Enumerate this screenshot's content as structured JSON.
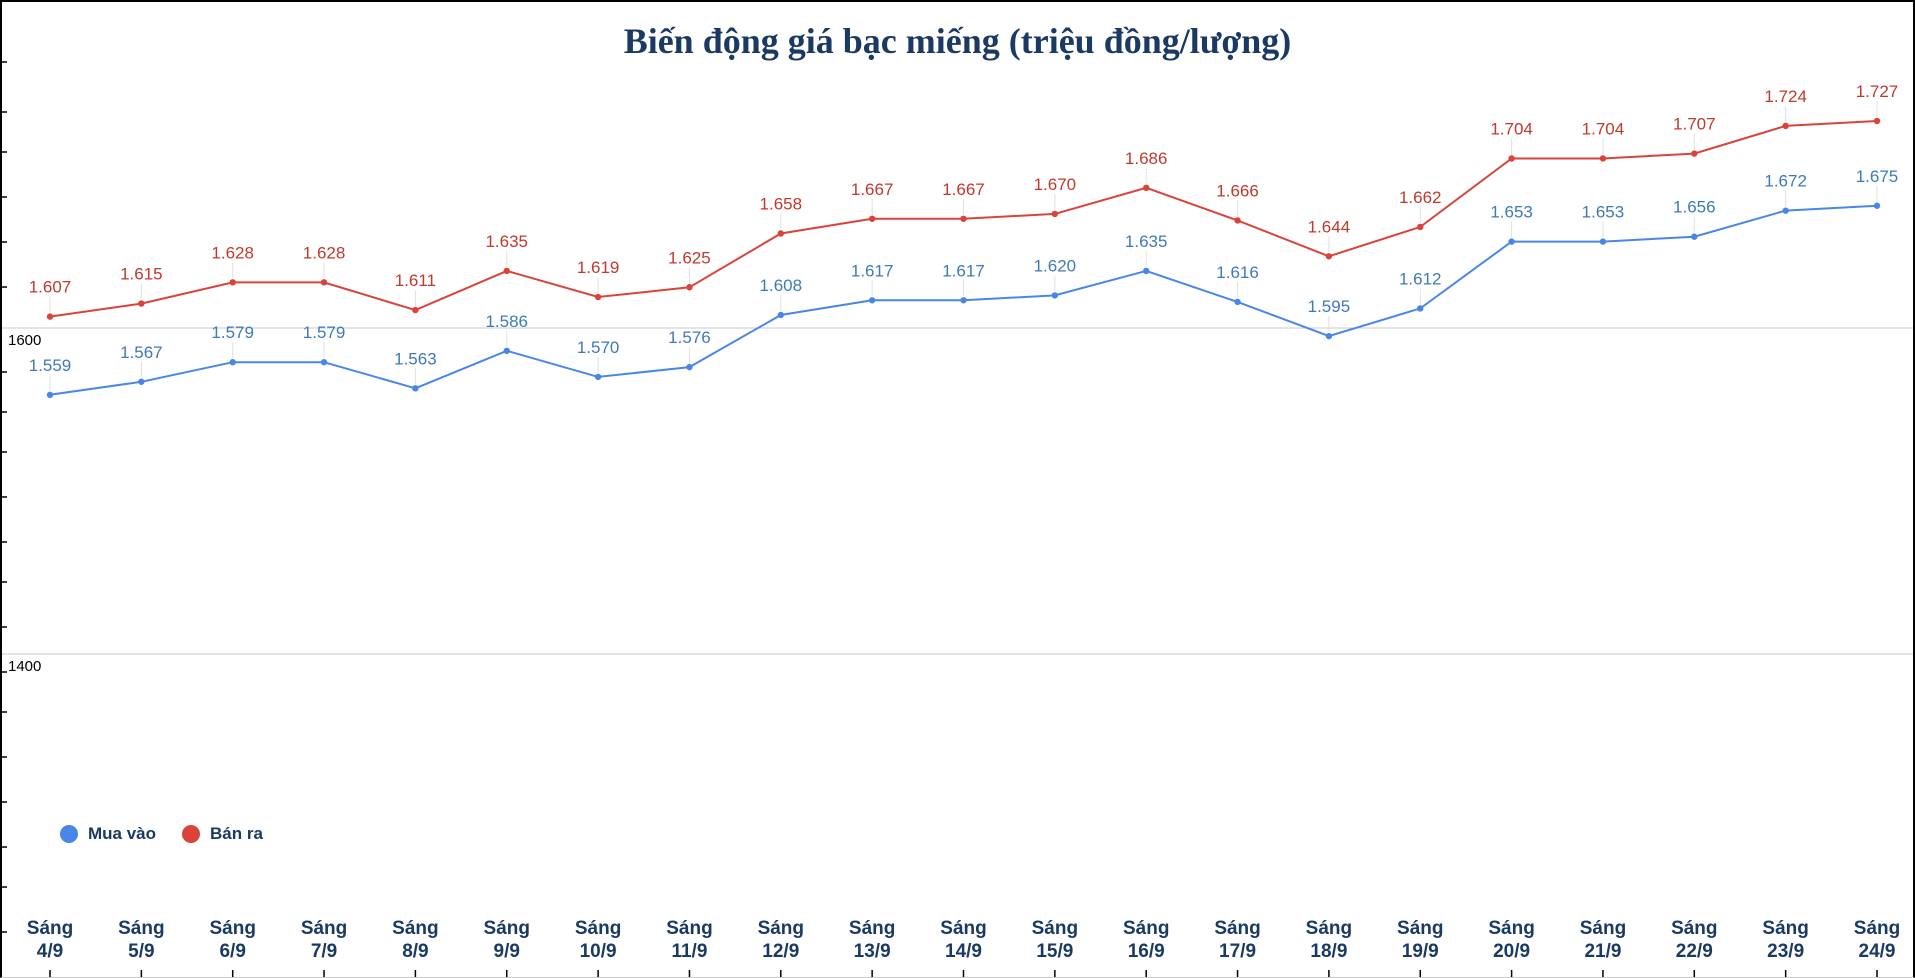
{
  "chart_data": {
    "type": "line",
    "title": "Biến động giá bạc miếng (triệu đồng/lượng)",
    "xlabel": "",
    "ylabel": "",
    "ylim": [
      1200,
      1800
    ],
    "grid_values": [
      1600,
      1400
    ],
    "grid_labels": [
      "1600",
      "1400"
    ],
    "categories": [
      [
        "Sáng",
        "4/9"
      ],
      [
        "Sáng",
        "5/9"
      ],
      [
        "Sáng",
        "6/9"
      ],
      [
        "Sáng",
        "7/9"
      ],
      [
        "Sáng",
        "8/9"
      ],
      [
        "Sáng",
        "9/9"
      ],
      [
        "Sáng",
        "10/9"
      ],
      [
        "Sáng",
        "11/9"
      ],
      [
        "Sáng",
        "12/9"
      ],
      [
        "Sáng",
        "13/9"
      ],
      [
        "Sáng",
        "14/9"
      ],
      [
        "Sáng",
        "15/9"
      ],
      [
        "Sáng",
        "16/9"
      ],
      [
        "Sáng",
        "17/9"
      ],
      [
        "Sáng",
        "18/9"
      ],
      [
        "Sáng",
        "19/9"
      ],
      [
        "Sáng",
        "20/9"
      ],
      [
        "Sáng",
        "21/9"
      ],
      [
        "Sáng",
        "22/9"
      ],
      [
        "Sáng",
        "23/9"
      ],
      [
        "Sáng",
        "24/9"
      ]
    ],
    "legend_position": "bottom-left",
    "series": [
      {
        "name": "Mua vào",
        "color": "#4a86e8",
        "label_color": "#3d7ab8",
        "values": [
          1559,
          1567,
          1579,
          1579,
          1563,
          1586,
          1570,
          1576,
          1608,
          1617,
          1617,
          1620,
          1635,
          1616,
          1595,
          1612,
          1653,
          1653,
          1656,
          1672,
          1675
        ],
        "labels": [
          "1.559",
          "1.567",
          "1.579",
          "1.579",
          "1.563",
          "1.586",
          "1.570",
          "1.576",
          "1.608",
          "1.617",
          "1.617",
          "1.620",
          "1.635",
          "1.616",
          "1.595",
          "1.612",
          "1.653",
          "1.653",
          "1.656",
          "1.672",
          "1.675"
        ]
      },
      {
        "name": "Bán ra",
        "color": "#d9433a",
        "label_color": "#c0392b",
        "values": [
          1607,
          1615,
          1628,
          1628,
          1611,
          1635,
          1619,
          1625,
          1658,
          1667,
          1667,
          1670,
          1686,
          1666,
          1644,
          1662,
          1704,
          1704,
          1707,
          1724,
          1727
        ],
        "labels": [
          "1.607",
          "1.615",
          "1.628",
          "1.628",
          "1.611",
          "1.635",
          "1.619",
          "1.625",
          "1.658",
          "1.667",
          "1.667",
          "1.670",
          "1.686",
          "1.666",
          "1.644",
          "1.662",
          "1.704",
          "1.704",
          "1.707",
          "1.724",
          "1.727"
        ]
      }
    ]
  },
  "legend": {
    "items": [
      {
        "label": "Mua vào",
        "color": "#4a86e8"
      },
      {
        "label": "Bán ra",
        "color": "#d9433a"
      }
    ]
  }
}
